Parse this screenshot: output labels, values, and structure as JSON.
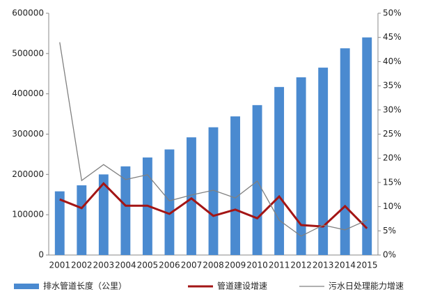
{
  "chart_data": {
    "type": "bar",
    "categories": [
      "2001",
      "2002",
      "2003",
      "2004",
      "2005",
      "2006",
      "2007",
      "2008",
      "2009",
      "2010",
      "2011",
      "2012",
      "2013",
      "2014",
      "2015"
    ],
    "series": [
      {
        "name": "排水管道长度（公里）",
        "color": "#4a8ad0",
        "values": [
          158000,
          173000,
          200000,
          220000,
          242000,
          262000,
          292000,
          317000,
          344000,
          372000,
          417000,
          441000,
          465000,
          513000,
          540000
        ]
      },
      {
        "name": "管道建设增速",
        "color": "#a31515",
        "axis": "y2",
        "values": [
          11.5,
          9.7,
          14.8,
          10.2,
          10.2,
          8.5,
          11.7,
          8.1,
          9.4,
          7.6,
          12.1,
          6.2,
          5.9,
          10.1,
          5.5
        ]
      },
      {
        "name": "污水日处理能力增速",
        "color": "#808080",
        "axis": "y2",
        "values": [
          44,
          15.4,
          18.7,
          15.6,
          16.6,
          11.2,
          12.4,
          13.4,
          11.8,
          15.3,
          7.2,
          3.9,
          6.2,
          5.2,
          7.2
        ]
      }
    ],
    "ylim": [
      0,
      600000
    ],
    "yticks": [
      0,
      100000,
      200000,
      300000,
      400000,
      500000,
      600000
    ],
    "y2lim": [
      0,
      50
    ],
    "y2ticks": [
      {
        "value": 0,
        "label": "0%"
      },
      {
        "value": 5,
        "label": "5%"
      },
      {
        "value": 10,
        "label": "10%"
      },
      {
        "value": 15,
        "label": "15%"
      },
      {
        "value": 20,
        "label": "20%"
      },
      {
        "value": 25,
        "label": "25%"
      },
      {
        "value": 30,
        "label": "30%"
      },
      {
        "value": 35,
        "label": "35%"
      },
      {
        "value": 40,
        "label": "40%"
      },
      {
        "value": 45,
        "label": "45%"
      },
      {
        "value": 50,
        "label": "50%"
      }
    ],
    "legend": "bottom"
  }
}
